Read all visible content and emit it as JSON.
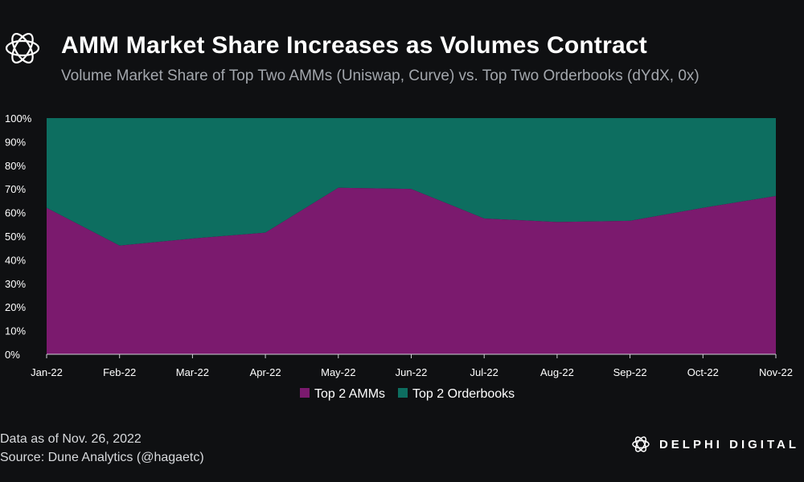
{
  "header": {
    "title": "AMM Market Share Increases as Volumes Contract",
    "subtitle": "Volume Market Share of Top Two AMMs (Uniswap, Curve) vs. Top Two Orderbooks (dYdX, 0x)",
    "logo_icon": "delphi-logo-icon"
  },
  "footer": {
    "date": "Data as of Nov. 26, 2022",
    "source": "Source: Dune Analytics  (@hagaetc)",
    "brand": "DELPHI DIGITAL"
  },
  "colors": {
    "amm": "#7b1a6e",
    "orderbook": "#0d6e60",
    "background": "#0f1012"
  },
  "chart_data": {
    "type": "area",
    "stacked": true,
    "categories": [
      "Jan-22",
      "Feb-22",
      "Mar-22",
      "Apr-22",
      "May-22",
      "Jun-22",
      "Jul-22",
      "Aug-22",
      "Sep-22",
      "Oct-22",
      "Nov-22"
    ],
    "series": [
      {
        "name": "Top 2 AMMs",
        "values": [
          62,
          46,
          49,
          51.5,
          70.5,
          70,
          57.5,
          56,
          56.5,
          62,
          67
        ]
      },
      {
        "name": "Top 2 Orderbooks",
        "values": [
          38,
          54,
          51,
          48.5,
          29.5,
          30,
          42.5,
          44,
          43.5,
          38,
          33
        ]
      }
    ],
    "ylim": [
      0,
      100
    ],
    "yticks": [
      "0%",
      "10%",
      "20%",
      "30%",
      "40%",
      "50%",
      "60%",
      "70%",
      "80%",
      "90%",
      "100%"
    ],
    "grid": false,
    "legend": "bottom"
  }
}
